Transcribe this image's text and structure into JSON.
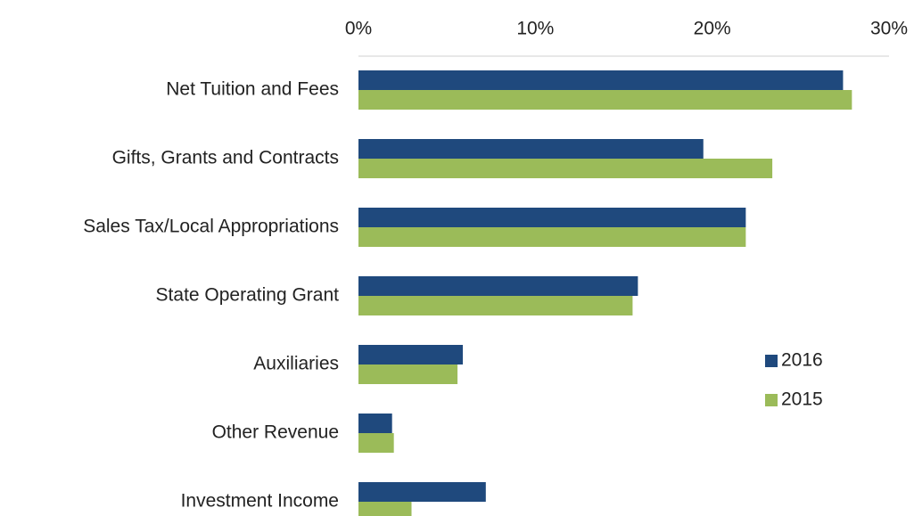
{
  "chart_data": {
    "type": "bar",
    "orientation": "horizontal",
    "categories": [
      "Net Tuition and Fees",
      "Gifts, Grants and Contracts",
      "Sales Tax/Local Appropriations",
      "State Operating Grant",
      "Auxiliaries",
      "Other Revenue",
      "Investment Income"
    ],
    "series": [
      {
        "name": "2016",
        "color": "#1f497d",
        "values": [
          27.4,
          19.5,
          21.9,
          15.8,
          5.9,
          1.9,
          7.2
        ]
      },
      {
        "name": "2015",
        "color": "#9bbb59",
        "values": [
          27.9,
          23.4,
          21.9,
          15.5,
          5.6,
          2.0,
          3.0
        ]
      }
    ],
    "xlim": [
      0,
      30
    ],
    "xticks": [
      {
        "value": 0,
        "label": "0%"
      },
      {
        "value": 10,
        "label": "10%"
      },
      {
        "value": 20,
        "label": "20%"
      },
      {
        "value": 30,
        "label": "30%"
      }
    ],
    "legend": "right"
  }
}
